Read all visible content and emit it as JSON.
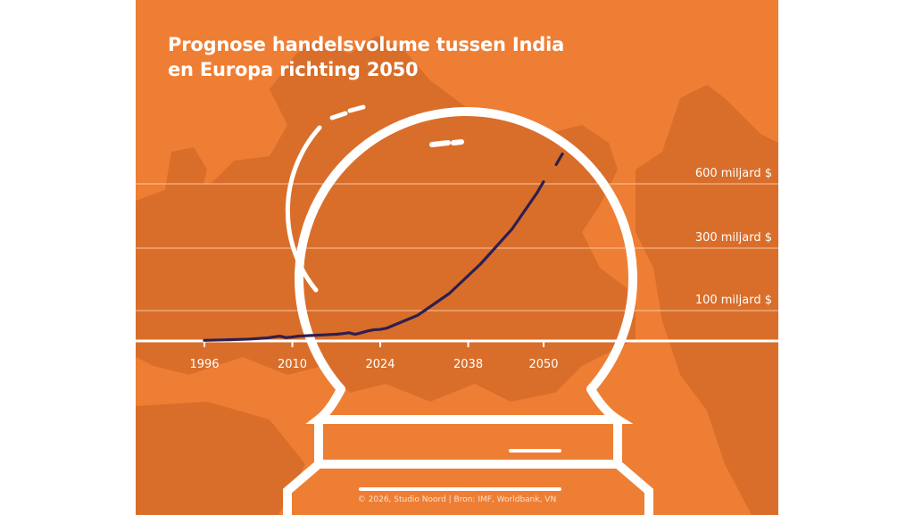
{
  "title_line1": "Prognose handelsvolume tussen India",
  "title_line2": "en Europa richting 2050",
  "credit": "© 2026, Studio Noord | Bron: IMF, Worldbank, VN",
  "colors": {
    "background": "#EE7E33",
    "line": "#2E1F4F",
    "land": "#D96E2A",
    "globe": "#ffffff"
  },
  "chart_data": {
    "type": "line",
    "title": "Prognose handelsvolume tussen India en Europa richting 2050",
    "x_ticks": [
      1996,
      2010,
      2024,
      2038,
      2050
    ],
    "y_ticks": [
      {
        "value": 100,
        "label": "100 miljard $"
      },
      {
        "value": 300,
        "label": "300 miljard $"
      },
      {
        "value": 600,
        "label": "600 miljard $"
      }
    ],
    "xlim": [
      1996,
      2054
    ],
    "series": [
      {
        "values": [
          [
            1996,
            2
          ],
          [
            2000,
            4
          ],
          [
            2003,
            6
          ],
          [
            2006,
            10
          ],
          [
            2008,
            16
          ],
          [
            2009,
            11
          ],
          [
            2010,
            13
          ],
          [
            2011,
            16
          ],
          [
            2013,
            18
          ],
          [
            2015,
            20
          ],
          [
            2017,
            22
          ],
          [
            2018,
            24
          ],
          [
            2019,
            27
          ],
          [
            2020,
            22
          ],
          [
            2021,
            27
          ],
          [
            2022,
            33
          ],
          [
            2023,
            37
          ],
          [
            2024,
            38
          ],
          [
            2025,
            42
          ],
          [
            2030,
            85
          ],
          [
            2035,
            155
          ],
          [
            2040,
            250
          ],
          [
            2045,
            390
          ],
          [
            2049,
            560
          ],
          [
            2050,
            610
          ]
        ]
      }
    ],
    "forecast_dash": [
      [
        2052,
        690
      ],
      [
        2053,
        740
      ]
    ],
    "grid": true
  }
}
